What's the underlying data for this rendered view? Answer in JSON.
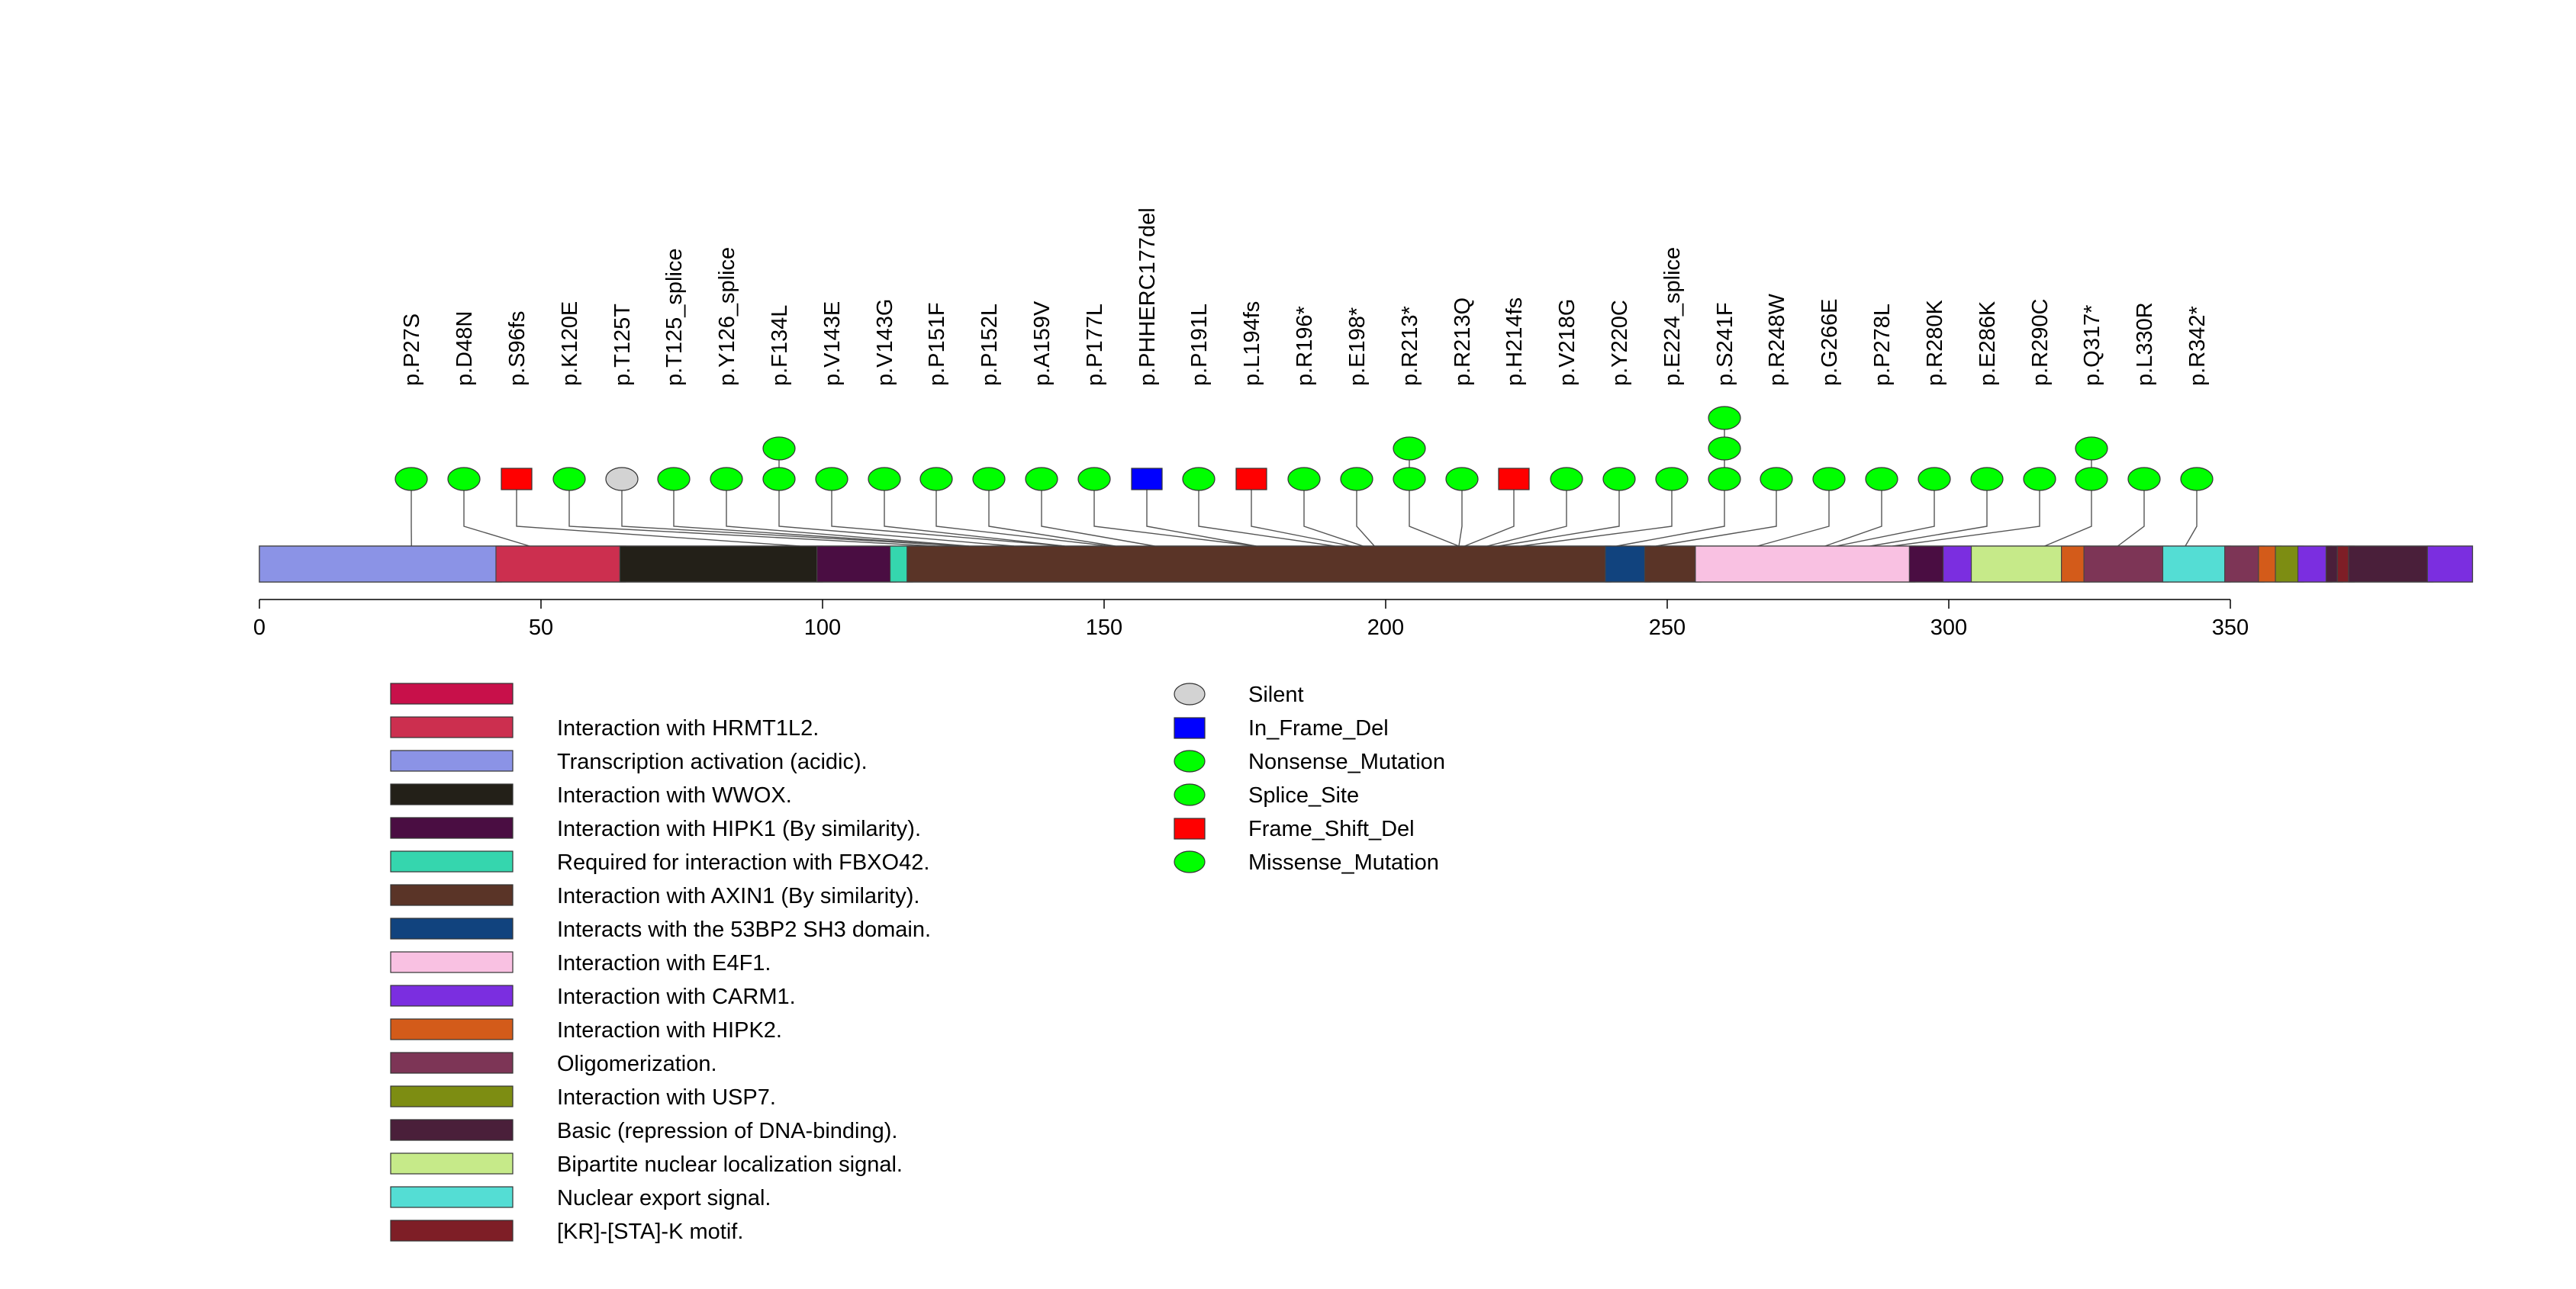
{
  "chart_data": {
    "type": "lollipop",
    "protein_length": 393,
    "x_ticks": [
      0,
      50,
      100,
      150,
      200,
      250,
      300,
      350
    ],
    "domains": [
      {
        "start": 1,
        "end": 43,
        "label": "Transcription activation (acidic).",
        "color": "#8b93e6"
      },
      {
        "start": 43,
        "end": 65,
        "label": "Interaction with HRMT1L2.",
        "color": "#cc2f4f"
      },
      {
        "start": 65,
        "end": 100,
        "label": "Interaction with WWOX.",
        "color": "#232018"
      },
      {
        "start": 100,
        "end": 113,
        "label": "Interaction with HIPK1 (By similarity).",
        "color": "#4a0d42"
      },
      {
        "start": 113,
        "end": 116,
        "label": "Required for interaction with FBXO42.",
        "color": "#35d6ae"
      },
      {
        "start": 116,
        "end": 240,
        "label": "Interaction with AXIN1 (By similarity).",
        "color": "#5a3427"
      },
      {
        "start": 240,
        "end": 247,
        "label": "Interacts with the 53BP2 SH3 domain.",
        "color": "#11437e"
      },
      {
        "start": 247,
        "end": 256,
        "label": "Interaction with AXIN1 (By similarity).",
        "color": "#5a3427"
      },
      {
        "start": 256,
        "end": 294,
        "label": "Interaction with E4F1.",
        "color": "#f9c1e2"
      },
      {
        "start": 294,
        "end": 300,
        "label": "Interaction with HIPK1 (By similarity).",
        "color": "#4a0d42"
      },
      {
        "start": 300,
        "end": 305,
        "label": "Interaction with CARM1.",
        "color": "#7b2ee0"
      },
      {
        "start": 305,
        "end": 321,
        "label": "Bipartite nuclear localization signal.",
        "color": "#c6ea89"
      },
      {
        "start": 321,
        "end": 325,
        "label": "Interaction with HIPK2.",
        "color": "#d35b1a"
      },
      {
        "start": 325,
        "end": 339,
        "label": "Oligomerization.",
        "color": "#7d3556"
      },
      {
        "start": 339,
        "end": 350,
        "label": "Nuclear export signal.",
        "color": "#54ddd4"
      },
      {
        "start": 350,
        "end": 356,
        "label": "Oligomerization.",
        "color": "#7d3556"
      },
      {
        "start": 356,
        "end": 359,
        "label": "Interaction with HIPK2.",
        "color": "#d35b1a"
      },
      {
        "start": 359,
        "end": 363,
        "label": "Interaction with USP7.",
        "color": "#7d8d12"
      },
      {
        "start": 363,
        "end": 368,
        "label": "Interaction with CARM1.",
        "color": "#7b2ee0"
      },
      {
        "start": 368,
        "end": 370,
        "label": "Basic (repression of DNA-binding).",
        "color": "#4a1f3a"
      },
      {
        "start": 370,
        "end": 372,
        "label": "[KR]-[STA]-K motif.",
        "color": "#7e1e26"
      },
      {
        "start": 372,
        "end": 386,
        "label": "Basic (repression of DNA-binding).",
        "color": "#4a1f3a"
      },
      {
        "start": 386,
        "end": 393,
        "label": "Interaction with CARM1.",
        "color": "#7b2ee0"
      }
    ],
    "mutations": [
      {
        "pos": 27,
        "label": "p.P27S",
        "count": 1,
        "type": "Missense_Mutation"
      },
      {
        "pos": 48,
        "label": "p.D48N",
        "count": 1,
        "type": "Missense_Mutation"
      },
      {
        "pos": 96,
        "label": "p.S96fs",
        "count": 1,
        "type": "Frame_Shift_Del"
      },
      {
        "pos": 120,
        "label": "p.K120E",
        "count": 1,
        "type": "Missense_Mutation"
      },
      {
        "pos": 125,
        "label": "p.T125T",
        "count": 1,
        "type": "Silent"
      },
      {
        "pos": 125,
        "label": "p.T125_splice",
        "count": 1,
        "type": "Splice_Site"
      },
      {
        "pos": 126,
        "label": "p.Y126_splice",
        "count": 1,
        "type": "Splice_Site"
      },
      {
        "pos": 134,
        "label": "p.F134L",
        "count": 2,
        "type": "Missense_Mutation"
      },
      {
        "pos": 143,
        "label": "p.V143E",
        "count": 1,
        "type": "Missense_Mutation"
      },
      {
        "pos": 143,
        "label": "p.V143G",
        "count": 1,
        "type": "Missense_Mutation"
      },
      {
        "pos": 151,
        "label": "p.P151F",
        "count": 1,
        "type": "Missense_Mutation"
      },
      {
        "pos": 152,
        "label": "p.P152L",
        "count": 1,
        "type": "Missense_Mutation"
      },
      {
        "pos": 159,
        "label": "p.A159V",
        "count": 1,
        "type": "Missense_Mutation"
      },
      {
        "pos": 177,
        "label": "p.P177L",
        "count": 1,
        "type": "Missense_Mutation"
      },
      {
        "pos": 177,
        "label": "p.PHHERC177del",
        "count": 1,
        "type": "In_Frame_Del"
      },
      {
        "pos": 191,
        "label": "p.P191L",
        "count": 1,
        "type": "Missense_Mutation"
      },
      {
        "pos": 194,
        "label": "p.L194fs",
        "count": 1,
        "type": "Frame_Shift_Del"
      },
      {
        "pos": 196,
        "label": "p.R196*",
        "count": 1,
        "type": "Nonsense_Mutation"
      },
      {
        "pos": 198,
        "label": "p.E198*",
        "count": 1,
        "type": "Nonsense_Mutation"
      },
      {
        "pos": 213,
        "label": "p.R213*",
        "count": 2,
        "type": "Nonsense_Mutation"
      },
      {
        "pos": 213,
        "label": "p.R213Q",
        "count": 1,
        "type": "Missense_Mutation"
      },
      {
        "pos": 214,
        "label": "p.H214fs",
        "count": 1,
        "type": "Frame_Shift_Del"
      },
      {
        "pos": 218,
        "label": "p.V218G",
        "count": 1,
        "type": "Missense_Mutation"
      },
      {
        "pos": 220,
        "label": "p.Y220C",
        "count": 1,
        "type": "Missense_Mutation"
      },
      {
        "pos": 224,
        "label": "p.E224_splice",
        "count": 1,
        "type": "Splice_Site"
      },
      {
        "pos": 241,
        "label": "p.S241F",
        "count": 3,
        "type": "Missense_Mutation"
      },
      {
        "pos": 248,
        "label": "p.R248W",
        "count": 1,
        "type": "Missense_Mutation"
      },
      {
        "pos": 266,
        "label": "p.G266E",
        "count": 1,
        "type": "Missense_Mutation"
      },
      {
        "pos": 278,
        "label": "p.P278L",
        "count": 1,
        "type": "Missense_Mutation"
      },
      {
        "pos": 280,
        "label": "p.R280K",
        "count": 1,
        "type": "Missense_Mutation"
      },
      {
        "pos": 286,
        "label": "p.E286K",
        "count": 1,
        "type": "Missense_Mutation"
      },
      {
        "pos": 290,
        "label": "p.R290C",
        "count": 1,
        "type": "Missense_Mutation"
      },
      {
        "pos": 317,
        "label": "p.Q317*",
        "count": 2,
        "type": "Nonsense_Mutation"
      },
      {
        "pos": 330,
        "label": "p.L330R",
        "count": 1,
        "type": "Missense_Mutation"
      },
      {
        "pos": 342,
        "label": "p.R342*",
        "count": 1,
        "type": "Nonsense_Mutation"
      }
    ],
    "domain_legend": [
      {
        "label": "",
        "color": "#c8104a"
      },
      {
        "label": "Interaction with HRMT1L2.",
        "color": "#cc2f4f"
      },
      {
        "label": "Transcription activation (acidic).",
        "color": "#8b93e6"
      },
      {
        "label": "Interaction with WWOX.",
        "color": "#232018"
      },
      {
        "label": "Interaction with HIPK1 (By similarity).",
        "color": "#4a0d42"
      },
      {
        "label": "Required for interaction with FBXO42.",
        "color": "#35d6ae"
      },
      {
        "label": "Interaction with AXIN1 (By similarity).",
        "color": "#5a3427"
      },
      {
        "label": "Interacts with the 53BP2 SH3 domain.",
        "color": "#11437e"
      },
      {
        "label": "Interaction with E4F1.",
        "color": "#f9c1e2"
      },
      {
        "label": "Interaction with CARM1.",
        "color": "#7b2ee0"
      },
      {
        "label": "Interaction with HIPK2.",
        "color": "#d35b1a"
      },
      {
        "label": "Oligomerization.",
        "color": "#7d3556"
      },
      {
        "label": "Interaction with USP7.",
        "color": "#7d8d12"
      },
      {
        "label": "Basic (repression of DNA-binding).",
        "color": "#4a1f3a"
      },
      {
        "label": "Bipartite nuclear localization signal.",
        "color": "#c6ea89"
      },
      {
        "label": "Nuclear export signal.",
        "color": "#54ddd4"
      },
      {
        "label": "[KR]-[STA]-K motif.",
        "color": "#7e1e26"
      }
    ],
    "mutation_legend": [
      {
        "label": "Silent",
        "shape": "ellipse",
        "color": "#d3d3d3"
      },
      {
        "label": "In_Frame_Del",
        "shape": "rect",
        "color": "#0000ff"
      },
      {
        "label": "Nonsense_Mutation",
        "shape": "ellipse",
        "color": "#00ff00"
      },
      {
        "label": "Splice_Site",
        "shape": "ellipse",
        "color": "#00ff00"
      },
      {
        "label": "Frame_Shift_Del",
        "shape": "rect",
        "color": "#ff0000"
      },
      {
        "label": "Missense_Mutation",
        "shape": "ellipse",
        "color": "#00ff00"
      }
    ],
    "type_colors": {
      "Silent": "#d3d3d3",
      "In_Frame_Del": "#0000ff",
      "Nonsense_Mutation": "#00ff00",
      "Splice_Site": "#00ff00",
      "Frame_Shift_Del": "#ff0000",
      "Missense_Mutation": "#00ff00"
    }
  }
}
